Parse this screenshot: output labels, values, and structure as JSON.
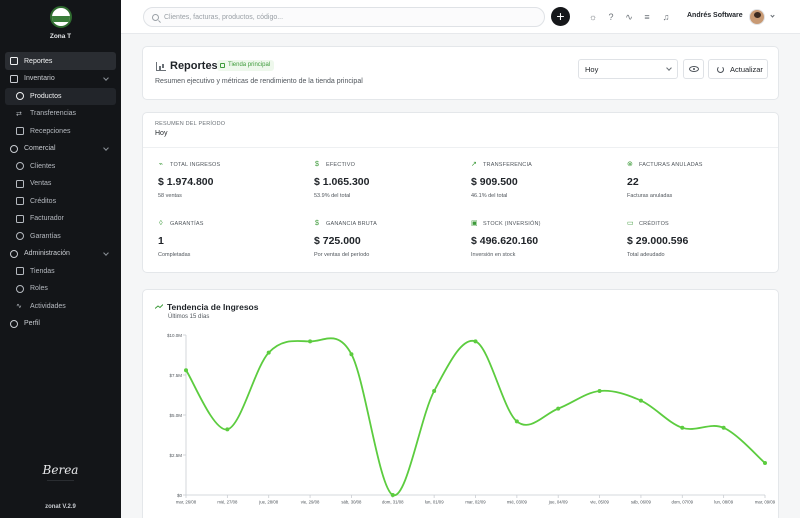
{
  "sidebar": {
    "brand_name": "Zona T",
    "items": [
      {
        "label": "Reportes",
        "icon": "chart-icon"
      },
      {
        "label": "Inventario",
        "icon": "box-icon"
      },
      {
        "label": "Productos",
        "icon": "package-icon"
      },
      {
        "label": "Transferencias",
        "icon": "transfer-icon"
      },
      {
        "label": "Recepciones",
        "icon": "receipt-icon"
      },
      {
        "label": "Comercial",
        "icon": "users-icon"
      },
      {
        "label": "Clientes",
        "icon": "user-icon"
      },
      {
        "label": "Ventas",
        "icon": "cart-icon"
      },
      {
        "label": "Créditos",
        "icon": "card-icon"
      },
      {
        "label": "Facturador",
        "icon": "invoice-icon"
      },
      {
        "label": "Garantías",
        "icon": "shield-icon"
      },
      {
        "label": "Administración",
        "icon": "gear-icon"
      },
      {
        "label": "Tiendas",
        "icon": "store-icon"
      },
      {
        "label": "Roles",
        "icon": "key-icon"
      },
      {
        "label": "Actividades",
        "icon": "activity-icon"
      },
      {
        "label": "Perfil",
        "icon": "profile-icon"
      }
    ],
    "signature": "Berea",
    "version": "zonat V.2.9"
  },
  "topbar": {
    "search_placeholder": "Clientes, facturas, productos, código...",
    "plus_label": "+",
    "user_name": "Andrés Software"
  },
  "header": {
    "title": "Reportes",
    "badge": "Tienda principal",
    "subtitle": "Resumen ejecutivo y métricas de rendimiento de la tienda principal",
    "period_select": "Hoy",
    "refresh_label": "Actualizar"
  },
  "summary": {
    "caption": "RESUMEN DEL PERÍODO",
    "period": "Hoy",
    "metrics": [
      {
        "label": "TOTAL INGRESOS",
        "value": "$ 1.974.800",
        "sub": "58 ventas",
        "icon": "trend-icon"
      },
      {
        "label": "EFECTIVO",
        "value": "$ 1.065.300",
        "sub": "53.9% del total",
        "icon": "dollar-icon"
      },
      {
        "label": "TRANSFERENCIA",
        "value": "$ 909.500",
        "sub": "46.1% del total",
        "icon": "trend-up-icon"
      },
      {
        "label": "FACTURAS ANULADAS",
        "value": "22",
        "sub": "Facturas anuladas",
        "icon": "cancel-icon"
      },
      {
        "label": "GARANTÍAS",
        "value": "1",
        "sub": "Completadas",
        "icon": "shield-icon"
      },
      {
        "label": "GANANCIA BRUTA",
        "value": "$ 725.000",
        "sub": "Por ventas del período",
        "icon": "dollar-icon"
      },
      {
        "label": "STOCK (INVERSIÓN)",
        "value": "$ 496.620.160",
        "sub": "Inversión en stock",
        "icon": "box-icon"
      },
      {
        "label": "CRÉDITOS",
        "value": "$ 29.000.596",
        "sub": "Total adeudado",
        "icon": "card-icon"
      }
    ]
  },
  "chart": {
    "title": "Tendencia de Ingresos",
    "subtitle": "Últimos 15 días",
    "color": "#5ccc3f"
  },
  "chart_data": {
    "type": "line",
    "title": "Tendencia de Ingresos",
    "x": [
      "mar, 26/08",
      "mié, 27/08",
      "jue, 28/08",
      "vie, 29/08",
      "sáb, 30/08",
      "dom, 31/08",
      "lun, 01/09",
      "mar, 02/09",
      "mié, 03/09",
      "jue, 04/09",
      "vie, 05/09",
      "sáb, 06/09",
      "dom, 07/09",
      "lun, 08/09",
      "mar, 09/09"
    ],
    "series": [
      {
        "values": [
          7.8,
          4.1,
          8.9,
          9.6,
          8.8,
          0.0,
          6.5,
          9.6,
          4.6,
          5.4,
          6.5,
          5.9,
          4.2,
          4.2,
          2.0
        ]
      }
    ],
    "y_ticks": [
      "$0",
      "$2.5M",
      "$5.0M",
      "$7.5M",
      "$10.0M"
    ],
    "ylim": [
      0,
      10
    ],
    "y_unit": "M",
    "grid": false
  }
}
